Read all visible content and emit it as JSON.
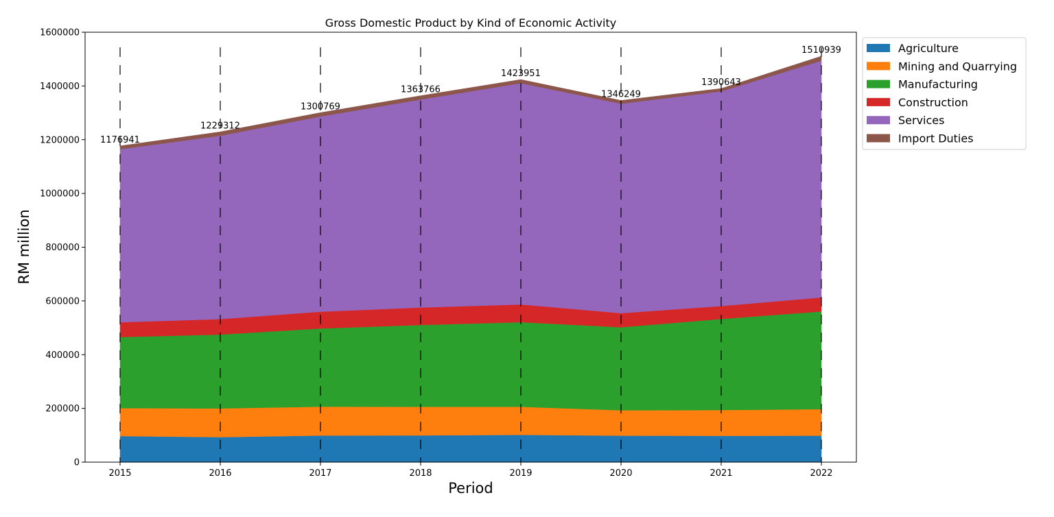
{
  "chart_data": {
    "type": "area",
    "stacked": true,
    "title": "Gross Domestic Product by Kind of Economic Activity",
    "xlabel": "Period",
    "ylabel": "RM million",
    "x": [
      2015,
      2016,
      2017,
      2018,
      2019,
      2020,
      2021,
      2022
    ],
    "x_tick_labels": [
      "2015",
      "2016",
      "2017",
      "2018",
      "2019",
      "2020",
      "2021",
      "2022"
    ],
    "ylim": [
      0,
      1600000
    ],
    "y_ticks": [
      0,
      200000,
      400000,
      600000,
      800000,
      1000000,
      1200000,
      1400000,
      1600000
    ],
    "y_tick_labels": [
      "0",
      "200000",
      "400000",
      "600000",
      "800000",
      "1000000",
      "1200000",
      "1400000",
      "1600000"
    ],
    "grid": "dashed vertical lines at each period",
    "legend_position": "outside upper right",
    "series": [
      {
        "name": "Agriculture",
        "color": "#1f77b4",
        "values": [
          97000,
          93000,
          99000,
          99500,
          101500,
          98500,
          98000,
          98500
        ]
      },
      {
        "name": "Mining and Quarrying",
        "color": "#ff7f0e",
        "values": [
          104000,
          107000,
          107500,
          106500,
          104500,
          94500,
          96000,
          98500
        ]
      },
      {
        "name": "Manufacturing",
        "color": "#2ca02c",
        "values": [
          264500,
          275000,
          291000,
          304500,
          315000,
          309000,
          339000,
          364000
        ]
      },
      {
        "name": "Construction",
        "color": "#d62728",
        "values": [
          55000,
          57500,
          62500,
          65000,
          66000,
          52500,
          48000,
          52000
        ]
      },
      {
        "name": "Services",
        "color": "#9467bd",
        "values": [
          644000,
          682500,
          726500,
          774000,
          823500,
          779500,
          799000,
          881000
        ]
      },
      {
        "name": "Import Duties",
        "color": "#8c564b",
        "values": [
          12441,
          14312,
          14269,
          14266,
          13451,
          12249,
          10643,
          16939
        ]
      }
    ],
    "totals": [
      1176941,
      1229312,
      1300769,
      1363766,
      1423951,
      1346249,
      1390643,
      1510939
    ],
    "total_labels": [
      "1176941",
      "1229312",
      "1300769",
      "1363766",
      "1423951",
      "1346249",
      "1390643",
      "1510939"
    ]
  }
}
